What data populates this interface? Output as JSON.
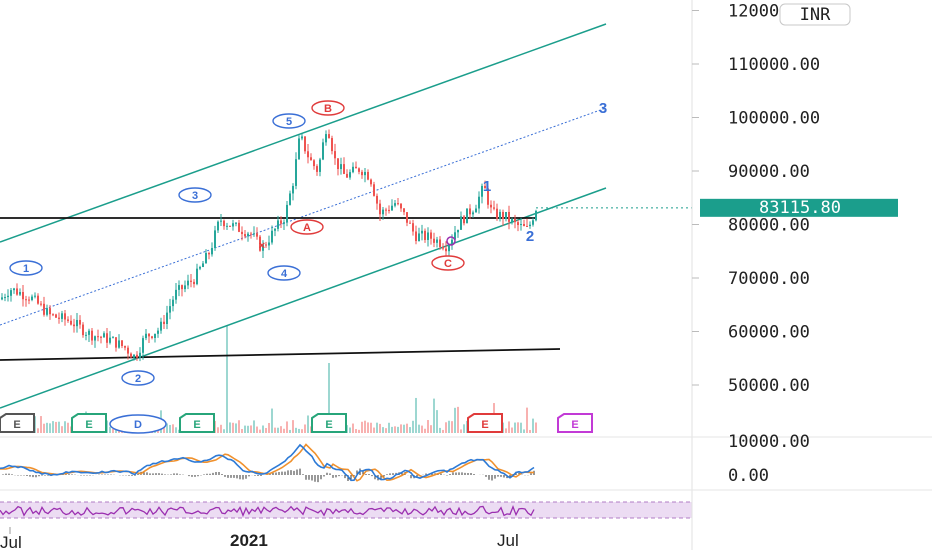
{
  "chart_data": {
    "type": "candlestick",
    "currency_badge": "INR",
    "price_axis": {
      "ticks": [
        "120000.00",
        "110000.00",
        "100000.00",
        "90000.00",
        "80000.00",
        "70000.00",
        "60000.00",
        "50000.00"
      ],
      "ylim": [
        47000,
        124000
      ]
    },
    "last_price": "83115.80",
    "indicator_axis": {
      "ticks": [
        "10000.00",
        "0.00"
      ]
    },
    "time_axis": {
      "labels": [
        "Jul",
        "2021",
        "Jul"
      ]
    },
    "wave_labels": [
      {
        "text": "1",
        "color": "#3a6fd6",
        "index": 0,
        "price": 67500
      },
      {
        "text": "2",
        "color": "#3a6fd6",
        "index": 1,
        "price": 55200
      },
      {
        "text": "3",
        "color": "#3a6fd6",
        "index": 2,
        "price": 88500
      },
      {
        "text": "4",
        "color": "#3a6fd6",
        "index": 3,
        "price": 76500
      },
      {
        "text": "5",
        "color": "#3a6fd6",
        "index": 4,
        "price": 99000
      },
      {
        "text": "A",
        "color": "#e03b3b",
        "index": 5,
        "price": 80000
      },
      {
        "text": "B",
        "color": "#e03b3b",
        "index": 6,
        "price": 102000
      },
      {
        "text": "C",
        "color": "#e03b3b",
        "index": 7,
        "price": 75000
      }
    ],
    "forecast_labels": [
      {
        "text": "1",
        "color": "#3a6fd6"
      },
      {
        "text": "2",
        "color": "#3a6fd6"
      },
      {
        "text": "3",
        "color": "#3a6fd6"
      }
    ],
    "event_markers": [
      {
        "text": "E",
        "color": "#555555"
      },
      {
        "text": "E",
        "color": "#27a57a"
      },
      {
        "text": "D",
        "color": "#3a6fd6"
      },
      {
        "text": "E",
        "color": "#27a57a"
      },
      {
        "text": "E",
        "color": "#27a57a"
      },
      {
        "text": "E",
        "color": "#e03b3b"
      },
      {
        "text": "E",
        "color": "#c23ad6"
      }
    ],
    "colors": {
      "up": "#26a69a",
      "down": "#ef5350",
      "channel": "#1b9e8c",
      "median": "#3a6fd6",
      "price_tag": "#1b9e8c",
      "macd": "#2d7ad6",
      "signal": "#f0912d",
      "rsi": "#9b2fb0",
      "rsi_band": "#ecdcf3"
    }
  }
}
